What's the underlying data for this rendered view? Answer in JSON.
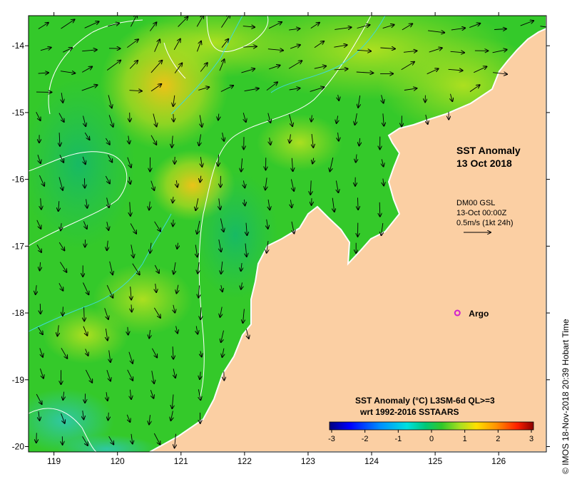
{
  "title": {
    "line1": "SST Anomaly",
    "line2": "13 Oct 2018"
  },
  "current_info": {
    "source": "DM00 GSL",
    "time": "13-Oct 00:00Z",
    "scale": "0.5m/s (1kt 24h)"
  },
  "argo": {
    "label": "Argo",
    "lon": 125.35,
    "lat": -18.0,
    "color": "#d01fd0"
  },
  "colorbar": {
    "title_line1": "SST Anomaly (°C) L3SM-6d QL>=3",
    "title_line2": "wrt 1992-2016 SSTAARS",
    "tick_labels": [
      "-3",
      "-2",
      "-1",
      "0",
      "1",
      "2",
      "3"
    ],
    "stops": [
      "#00007f",
      "#0000ff",
      "#0080ff",
      "#00e5ff",
      "#00d070",
      "#3ccc2a",
      "#a8e020",
      "#ffe000",
      "#ff9000",
      "#ff3000",
      "#8b0000"
    ]
  },
  "credit": "© IMOS 18-Nov-2018 20:39 Hobart Time",
  "axes": {
    "lon_range": [
      118.6,
      126.75
    ],
    "lat_range": [
      -20.08,
      -13.55
    ],
    "x_ticks": [
      "119",
      "120",
      "121",
      "122",
      "123",
      "124",
      "125",
      "126"
    ],
    "y_ticks": [
      "-14",
      "-15",
      "-16",
      "-17",
      "-18",
      "-19",
      "-20"
    ]
  },
  "colors": {
    "land": "#fbcfa3",
    "sea_base": "#34c92a",
    "sea_warm": "#a9dd21",
    "sea_hot": "#f5c217",
    "sea_cool": "#1fbf5c",
    "shallow": "#35c8b0"
  }
}
